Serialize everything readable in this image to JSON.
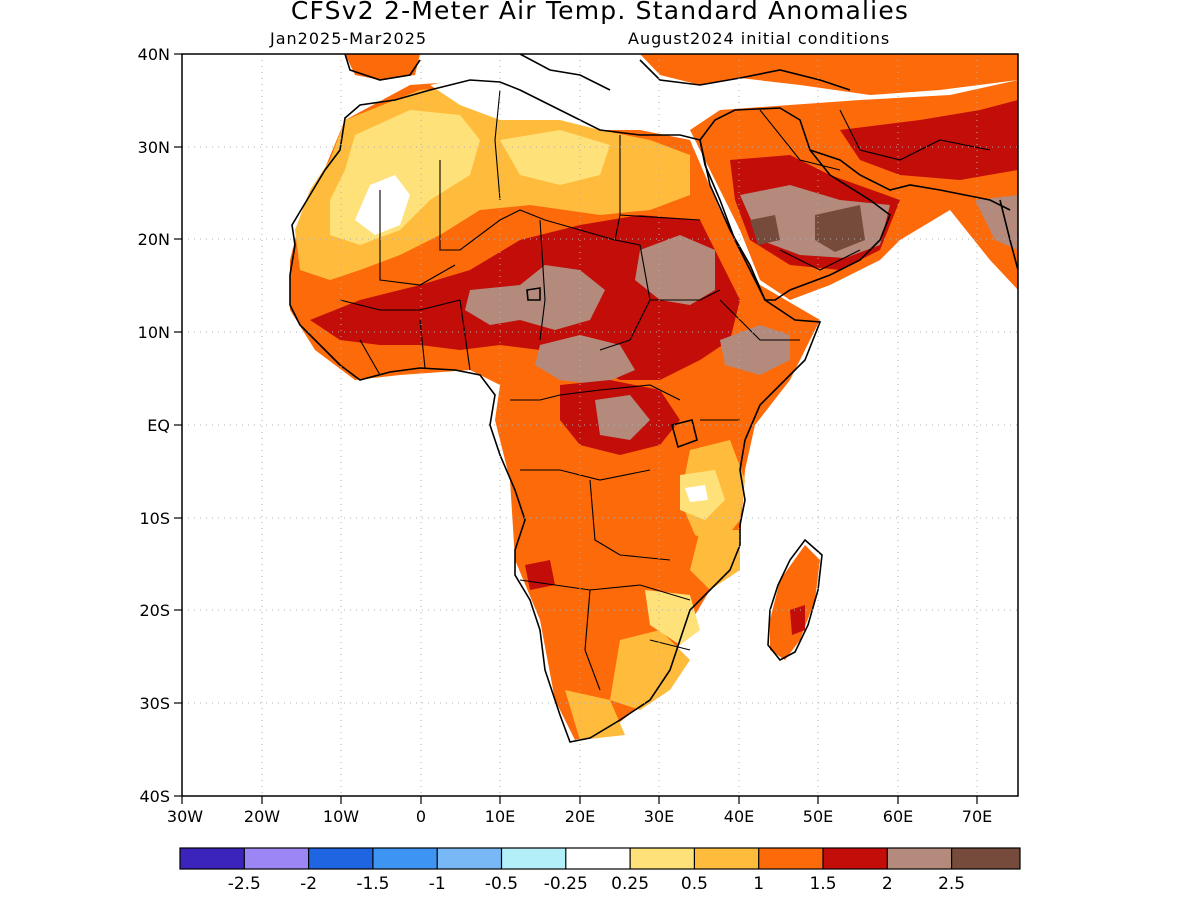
{
  "header": {
    "title": "CFSv2 2-Meter Air Temp. Standard Anomalies",
    "period": "Jan2025-Mar2025",
    "init": "August2024 initial conditions"
  },
  "map": {
    "lat_ticks": [
      "40N",
      "30N",
      "20N",
      "10N",
      "EQ",
      "10S",
      "20S",
      "30S",
      "40S"
    ],
    "lon_ticks": [
      "30W",
      "20W",
      "10W",
      "0",
      "10E",
      "20E",
      "30E",
      "40E",
      "50E",
      "60E",
      "70E"
    ]
  },
  "legend": {
    "colors": [
      "#3b24bb",
      "#9c86f5",
      "#1f64e0",
      "#3d94f2",
      "#78b8f7",
      "#b3eff8",
      "#ffffff",
      "#ffe17a",
      "#ffbc3c",
      "#fc6a0a",
      "#c20d08",
      "#b38a7c",
      "#764b3c"
    ],
    "labels": [
      "-2.5",
      "-2",
      "-1.5",
      "-1",
      "-0.5",
      "-0.25",
      "0.25",
      "0.5",
      "1",
      "1.5",
      "2",
      "2.5"
    ]
  },
  "palette": {
    "c025": "#ffe17a",
    "c05": "#ffbc3c",
    "c1": "#fc6a0a",
    "c15": "#c20d08",
    "c2": "#b38a7c",
    "c25": "#764b3c"
  }
}
